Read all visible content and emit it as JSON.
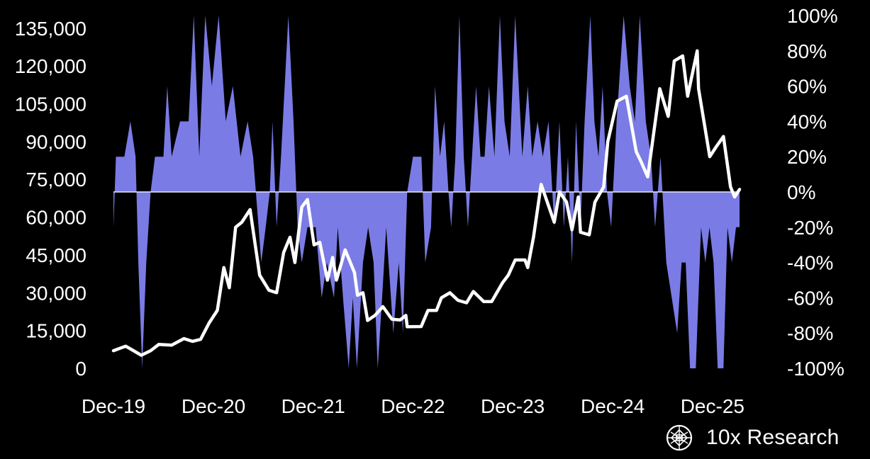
{
  "chart_data": {
    "type": "line",
    "x_ticks": [
      "Dec-19",
      "Dec-20",
      "Dec-21",
      "Dec-22",
      "Dec-23",
      "Dec-24",
      "Dec-25"
    ],
    "y_left": {
      "ylim": [
        0,
        140000
      ],
      "ticks": [
        0,
        15000,
        30000,
        45000,
        60000,
        75000,
        90000,
        105000,
        120000,
        135000
      ],
      "tick_labels": [
        "0",
        "15,000",
        "30,000",
        "45,000",
        "60,000",
        "75,000",
        "90,000",
        "105,000",
        "120,000",
        "135,000"
      ]
    },
    "y_right": {
      "ylim": [
        -100,
        100
      ],
      "ticks": [
        -100,
        -80,
        -60,
        -40,
        -20,
        0,
        20,
        40,
        60,
        80,
        100
      ],
      "tick_labels": [
        "-100%",
        "-80%",
        "-60%",
        "-40%",
        "-20%",
        "0%",
        "20%",
        "40%",
        "60%",
        "80%",
        "100%"
      ]
    },
    "series": [
      {
        "axis": "left",
        "color": "#ffffff",
        "style": "line",
        "points": [
          [
            "2019-12-01",
            7000
          ],
          [
            "2020-01-15",
            8800
          ],
          [
            "2020-03-12",
            5200
          ],
          [
            "2020-04-15",
            7000
          ],
          [
            "2020-05-15",
            9500
          ],
          [
            "2020-07-01",
            9200
          ],
          [
            "2020-08-15",
            11800
          ],
          [
            "2020-09-15",
            10700
          ],
          [
            "2020-10-15",
            11500
          ],
          [
            "2020-11-15",
            18000
          ],
          [
            "2020-12-15",
            23000
          ],
          [
            "2021-01-08",
            40000
          ],
          [
            "2021-01-28",
            32000
          ],
          [
            "2021-02-20",
            56000
          ],
          [
            "2021-03-15",
            58000
          ],
          [
            "2021-04-14",
            63000
          ],
          [
            "2021-05-19",
            37000
          ],
          [
            "2021-06-22",
            31000
          ],
          [
            "2021-07-20",
            30000
          ],
          [
            "2021-08-15",
            46000
          ],
          [
            "2021-09-07",
            52000
          ],
          [
            "2021-09-25",
            42000
          ],
          [
            "2021-10-20",
            64000
          ],
          [
            "2021-11-10",
            67000
          ],
          [
            "2021-12-04",
            49000
          ],
          [
            "2021-12-25",
            50000
          ],
          [
            "2022-01-22",
            35000
          ],
          [
            "2022-02-10",
            44000
          ],
          [
            "2022-02-24",
            35000
          ],
          [
            "2022-03-28",
            47000
          ],
          [
            "2022-05-01",
            38000
          ],
          [
            "2022-05-12",
            29000
          ],
          [
            "2022-06-01",
            30000
          ],
          [
            "2022-06-18",
            19000
          ],
          [
            "2022-07-15",
            21000
          ],
          [
            "2022-08-13",
            24500
          ],
          [
            "2022-09-15",
            19500
          ],
          [
            "2022-10-15",
            19200
          ],
          [
            "2022-11-05",
            21000
          ],
          [
            "2022-11-10",
            16500
          ],
          [
            "2022-12-31",
            16600
          ],
          [
            "2023-01-25",
            23000
          ],
          [
            "2023-02-25",
            23000
          ],
          [
            "2023-03-15",
            28000
          ],
          [
            "2023-04-15",
            30000
          ],
          [
            "2023-05-15",
            27000
          ],
          [
            "2023-06-15",
            26000
          ],
          [
            "2023-07-10",
            30500
          ],
          [
            "2023-08-17",
            26500
          ],
          [
            "2023-09-15",
            26500
          ],
          [
            "2023-10-25",
            34000
          ],
          [
            "2023-11-15",
            37000
          ],
          [
            "2023-12-10",
            43000
          ],
          [
            "2024-01-15",
            43000
          ],
          [
            "2024-01-25",
            40000
          ],
          [
            "2024-02-15",
            52000
          ],
          [
            "2024-03-14",
            73000
          ],
          [
            "2024-04-15",
            63000
          ],
          [
            "2024-05-01",
            58000
          ],
          [
            "2024-05-20",
            70000
          ],
          [
            "2024-06-15",
            66000
          ],
          [
            "2024-07-05",
            55000
          ],
          [
            "2024-07-28",
            68000
          ],
          [
            "2024-08-05",
            54000
          ],
          [
            "2024-09-06",
            53000
          ],
          [
            "2024-09-27",
            66000
          ],
          [
            "2024-10-29",
            72000
          ],
          [
            "2024-11-13",
            90000
          ],
          [
            "2024-12-17",
            106000
          ],
          [
            "2025-01-20",
            108000
          ],
          [
            "2025-02-25",
            86000
          ],
          [
            "2025-03-15",
            82000
          ],
          [
            "2025-04-08",
            76000
          ],
          [
            "2025-05-22",
            111000
          ],
          [
            "2025-06-22",
            100000
          ],
          [
            "2025-07-14",
            122000
          ],
          [
            "2025-08-14",
            124000
          ],
          [
            "2025-09-01",
            108000
          ],
          [
            "2025-10-06",
            126000
          ],
          [
            "2025-10-11",
            111000
          ],
          [
            "2025-11-21",
            84000
          ],
          [
            "2025-12-15",
            88000
          ],
          [
            "2026-01-10",
            92000
          ],
          [
            "2026-02-05",
            72000
          ],
          [
            "2026-02-20",
            68000
          ],
          [
            "2026-03-10",
            71000
          ]
        ]
      },
      {
        "axis": "right",
        "color": "#7b7be6",
        "style": "area",
        "points": [
          [
            "2019-12-01",
            -20
          ],
          [
            "2019-12-10",
            20
          ],
          [
            "2020-01-10",
            20
          ],
          [
            "2020-02-01",
            40
          ],
          [
            "2020-02-20",
            20
          ],
          [
            "2020-03-01",
            -40
          ],
          [
            "2020-03-15",
            -100
          ],
          [
            "2020-03-30",
            -40
          ],
          [
            "2020-04-15",
            0
          ],
          [
            "2020-05-01",
            20
          ],
          [
            "2020-06-01",
            20
          ],
          [
            "2020-06-15",
            60
          ],
          [
            "2020-07-01",
            20
          ],
          [
            "2020-08-01",
            40
          ],
          [
            "2020-09-01",
            40
          ],
          [
            "2020-09-20",
            100
          ],
          [
            "2020-10-10",
            20
          ],
          [
            "2020-11-01",
            100
          ],
          [
            "2020-11-25",
            60
          ],
          [
            "2020-12-20",
            100
          ],
          [
            "2021-01-15",
            40
          ],
          [
            "2021-02-10",
            60
          ],
          [
            "2021-03-10",
            20
          ],
          [
            "2021-04-05",
            40
          ],
          [
            "2021-04-25",
            20
          ],
          [
            "2021-05-15",
            -20
          ],
          [
            "2021-05-25",
            -40
          ],
          [
            "2021-06-10",
            -20
          ],
          [
            "2021-06-25",
            0
          ],
          [
            "2021-07-05",
            40
          ],
          [
            "2021-07-20",
            -20
          ],
          [
            "2021-08-05",
            20
          ],
          [
            "2021-09-01",
            100
          ],
          [
            "2021-09-20",
            40
          ],
          [
            "2021-10-05",
            -20
          ],
          [
            "2021-10-20",
            -40
          ],
          [
            "2021-11-10",
            -20
          ],
          [
            "2021-12-10",
            -20
          ],
          [
            "2022-01-01",
            -60
          ],
          [
            "2022-01-20",
            -40
          ],
          [
            "2022-02-15",
            -60
          ],
          [
            "2022-03-01",
            -20
          ],
          [
            "2022-03-20",
            -60
          ],
          [
            "2022-04-10",
            -100
          ],
          [
            "2022-04-25",
            -60
          ],
          [
            "2022-05-10",
            -100
          ],
          [
            "2022-06-01",
            -40
          ],
          [
            "2022-06-20",
            -20
          ],
          [
            "2022-07-10",
            -40
          ],
          [
            "2022-07-25",
            -100
          ],
          [
            "2022-08-10",
            -60
          ],
          [
            "2022-08-25",
            -20
          ],
          [
            "2022-09-20",
            -80
          ],
          [
            "2022-10-10",
            -40
          ],
          [
            "2022-10-25",
            -80
          ],
          [
            "2022-11-10",
            0
          ],
          [
            "2022-12-01",
            20
          ],
          [
            "2023-01-01",
            20
          ],
          [
            "2023-01-15",
            -40
          ],
          [
            "2023-02-05",
            -20
          ],
          [
            "2023-02-20",
            60
          ],
          [
            "2023-03-10",
            20
          ],
          [
            "2023-03-25",
            40
          ],
          [
            "2023-04-10",
            0
          ],
          [
            "2023-04-20",
            -20
          ],
          [
            "2023-05-05",
            20
          ],
          [
            "2023-05-20",
            100
          ],
          [
            "2023-06-05",
            20
          ],
          [
            "2023-06-20",
            -20
          ],
          [
            "2023-07-05",
            20
          ],
          [
            "2023-07-20",
            60
          ],
          [
            "2023-08-05",
            20
          ],
          [
            "2023-08-20",
            20
          ],
          [
            "2023-09-05",
            60
          ],
          [
            "2023-09-25",
            20
          ],
          [
            "2023-10-15",
            100
          ],
          [
            "2023-11-01",
            40
          ],
          [
            "2023-11-20",
            20
          ],
          [
            "2023-12-10",
            100
          ],
          [
            "2024-01-05",
            20
          ],
          [
            "2024-01-25",
            60
          ],
          [
            "2024-02-10",
            20
          ],
          [
            "2024-03-01",
            40
          ],
          [
            "2024-03-20",
            20
          ],
          [
            "2024-04-10",
            40
          ],
          [
            "2024-05-01",
            -20
          ],
          [
            "2024-05-20",
            40
          ],
          [
            "2024-06-05",
            -20
          ],
          [
            "2024-06-20",
            20
          ],
          [
            "2024-07-05",
            -40
          ],
          [
            "2024-07-20",
            40
          ],
          [
            "2024-08-05",
            -20
          ],
          [
            "2024-08-20",
            40
          ],
          [
            "2024-09-10",
            100
          ],
          [
            "2024-09-25",
            40
          ],
          [
            "2024-10-10",
            20
          ],
          [
            "2024-10-25",
            60
          ],
          [
            "2024-11-10",
            0
          ],
          [
            "2024-11-25",
            -20
          ],
          [
            "2024-12-15",
            40
          ],
          [
            "2025-01-10",
            100
          ],
          [
            "2025-02-01",
            60
          ],
          [
            "2025-02-20",
            40
          ],
          [
            "2025-03-10",
            100
          ],
          [
            "2025-04-01",
            40
          ],
          [
            "2025-04-20",
            20
          ],
          [
            "2025-05-05",
            -20
          ],
          [
            "2025-05-25",
            20
          ],
          [
            "2025-06-15",
            -40
          ],
          [
            "2025-07-05",
            -60
          ],
          [
            "2025-07-25",
            -80
          ],
          [
            "2025-08-10",
            -40
          ],
          [
            "2025-08-25",
            -40
          ],
          [
            "2025-09-10",
            -100
          ],
          [
            "2025-10-01",
            -100
          ],
          [
            "2025-10-20",
            -20
          ],
          [
            "2025-11-05",
            -40
          ],
          [
            "2025-11-20",
            -20
          ],
          [
            "2025-12-05",
            -40
          ],
          [
            "2025-12-20",
            -100
          ],
          [
            "2026-01-10",
            -100
          ],
          [
            "2026-01-25",
            -20
          ],
          [
            "2026-02-10",
            -40
          ],
          [
            "2026-02-25",
            -20
          ],
          [
            "2026-03-10",
            -20
          ]
        ]
      }
    ]
  },
  "brand": {
    "name": "10x Research",
    "logo_icon": "10x-research-logo-icon"
  }
}
